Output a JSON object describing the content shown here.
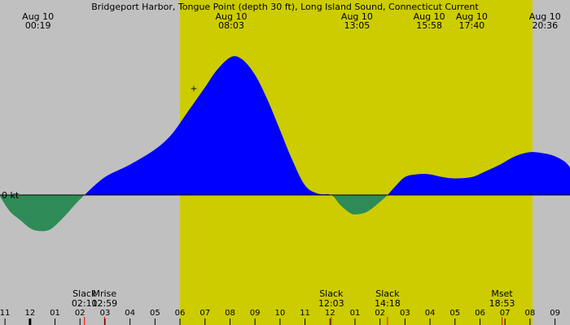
{
  "chart_data": {
    "type": "area",
    "title": "Bridgeport Harbor, Tongue Point (depth 30 ft), Long Island Sound, Connecticut Current",
    "y_zero_label": "0 kt",
    "colors": {
      "background": "#c0c0c0",
      "daylight": "#cccc00",
      "flood": "#0000ff",
      "ebb": "#2e8b57"
    },
    "daylight_span_hours": [
      6.0,
      20.1
    ],
    "x_range_hours": [
      -1.2,
      21.6
    ],
    "y_range": [
      -1.0,
      1.0
    ],
    "x": [
      -1.2,
      -0.8,
      -0.4,
      0.0,
      0.33,
      0.8,
      1.3,
      1.8,
      2.18,
      3.0,
      4.0,
      5.0,
      5.67,
      6.3,
      7.0,
      7.5,
      8.05,
      8.5,
      9.0,
      9.5,
      10.0,
      10.5,
      11.0,
      11.5,
      12.05,
      12.4,
      12.8,
      13.08,
      13.5,
      14.0,
      14.3,
      14.6,
      15.0,
      15.5,
      15.97,
      16.5,
      17.0,
      17.67,
      18.2,
      18.8,
      19.4,
      20.0,
      20.6,
      21.0,
      21.4,
      21.6
    ],
    "y": [
      -0.01,
      -0.12,
      -0.18,
      -0.24,
      -0.26,
      -0.25,
      -0.17,
      -0.07,
      0.0,
      0.13,
      0.22,
      0.33,
      0.44,
      0.6,
      0.78,
      0.91,
      1.0,
      0.98,
      0.87,
      0.69,
      0.47,
      0.25,
      0.07,
      0.01,
      0.0,
      -0.07,
      -0.13,
      -0.14,
      -0.12,
      -0.05,
      0.0,
      0.06,
      0.13,
      0.15,
      0.15,
      0.13,
      0.12,
      0.13,
      0.17,
      0.22,
      0.28,
      0.31,
      0.3,
      0.28,
      0.24,
      0.2
    ],
    "top_events": [
      {
        "date": "Aug 10",
        "time": "00:19",
        "hour": 0.32
      },
      {
        "date": "Aug 10",
        "time": "08:03",
        "hour": 8.05
      },
      {
        "date": "Aug 10",
        "time": "13:05",
        "hour": 13.08
      },
      {
        "date": "Aug 10",
        "time": "15:58",
        "hour": 15.97
      },
      {
        "date": "Aug 10",
        "time": "17:40",
        "hour": 17.67
      },
      {
        "date": "Aug 10",
        "time": "20:36",
        "hour": 20.6
      }
    ],
    "bottom_events": [
      {
        "label": "Slack",
        "time": "02:11",
        "hour": 2.18,
        "marker_color": "#ff0000"
      },
      {
        "label": "Mrise",
        "time": "02:59",
        "hour": 2.98,
        "marker_color": "#ff0000"
      },
      {
        "label": "Slack",
        "time": "12:03",
        "hour": 12.05,
        "marker_color": "#ff0000"
      },
      {
        "label": "Slack",
        "time": "14:18",
        "hour": 14.3,
        "marker_color": "#ff0000"
      },
      {
        "label": "Mset",
        "time": "18:53",
        "hour": 18.88,
        "marker_color": "#ff0000"
      }
    ],
    "hour_ticks": [
      {
        "label": "11",
        "hour": -1
      },
      {
        "label": "12",
        "hour": 0
      },
      {
        "label": "01",
        "hour": 1
      },
      {
        "label": "02",
        "hour": 2
      },
      {
        "label": "03",
        "hour": 3
      },
      {
        "label": "04",
        "hour": 4
      },
      {
        "label": "05",
        "hour": 5
      },
      {
        "label": "06",
        "hour": 6
      },
      {
        "label": "07",
        "hour": 7
      },
      {
        "label": "08",
        "hour": 8
      },
      {
        "label": "09",
        "hour": 9
      },
      {
        "label": "10",
        "hour": 10
      },
      {
        "label": "11",
        "hour": 11
      },
      {
        "label": "12",
        "hour": 12
      },
      {
        "label": "01",
        "hour": 13
      },
      {
        "label": "02",
        "hour": 14
      },
      {
        "label": "03",
        "hour": 15
      },
      {
        "label": "04",
        "hour": 16
      },
      {
        "label": "05",
        "hour": 17
      },
      {
        "label": "06",
        "hour": 18
      },
      {
        "label": "07",
        "hour": 19
      },
      {
        "label": "08",
        "hour": 20
      },
      {
        "label": "09",
        "hour": 21
      }
    ],
    "now_marker": {
      "symbol": "+",
      "hour": 6.55,
      "value": 0.78
    }
  }
}
